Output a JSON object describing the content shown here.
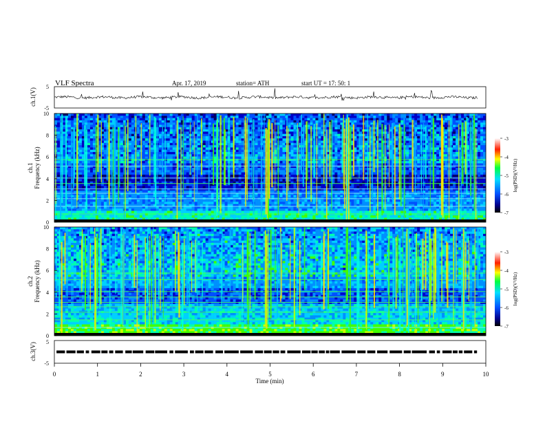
{
  "header": {
    "title": "VLF  Spectra",
    "date": "Apr. 17, 2019",
    "station": "station= ATH",
    "start": "start  UT  =   17: 50: 1"
  },
  "chart_data": [
    {
      "type": "line",
      "panel": "ch1-waveform",
      "ylabel": "ch.1(V)",
      "ylim": [
        -5,
        5
      ],
      "yticks": [
        "5",
        "-5"
      ],
      "xlim": [
        0,
        10
      ],
      "description_values": "time series near ~0 V with spikes"
    },
    {
      "type": "heatmap",
      "panel": "ch1-spectrogram",
      "ylabel": [
        "ch.1",
        "Frequency (kHz)"
      ],
      "ylim": [
        0,
        10
      ],
      "yticks": [
        "0",
        "2",
        "4",
        "6",
        "8",
        "10"
      ],
      "xlim": [
        0,
        10
      ],
      "colorbar": {
        "label": "log(PSD)(V²/Hz)",
        "ticks": [
          "-3",
          "-4",
          "-5",
          "-6",
          "-7"
        ],
        "range": [
          -7,
          -3
        ]
      }
    },
    {
      "type": "heatmap",
      "panel": "ch2-spectrogram",
      "ylabel": [
        "ch.2",
        "Frequency (kHz)"
      ],
      "ylim": [
        0,
        10
      ],
      "yticks": [
        "0",
        "2",
        "4",
        "6",
        "8",
        "10"
      ],
      "xlim": [
        0,
        10
      ],
      "colorbar": {
        "label": "log(PSD)(V²/Hz)",
        "ticks": [
          "-3",
          "-4",
          "-5",
          "-6",
          "-7"
        ],
        "range": [
          -7,
          -3
        ]
      }
    },
    {
      "type": "scatter",
      "panel": "ch3-trace",
      "ylabel": "ch.3(V)",
      "ylim": [
        -5,
        5
      ],
      "yticks": [
        "5",
        "-5"
      ],
      "xlim": [
        0,
        10
      ],
      "xlabel": "Time  (min)",
      "xticks": [
        "0",
        "1",
        "2",
        "3",
        "4",
        "5",
        "6",
        "7",
        "8",
        "9",
        "10"
      ]
    }
  ]
}
